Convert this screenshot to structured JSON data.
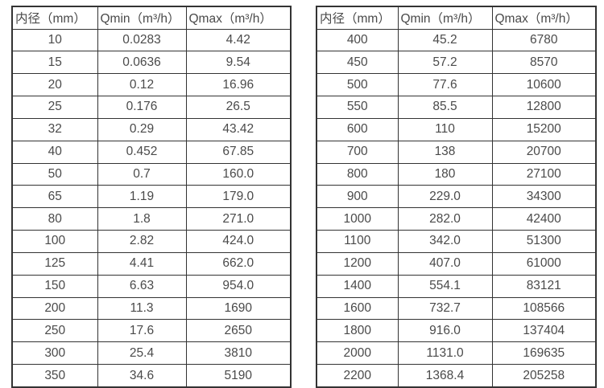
{
  "page": {
    "background": "#ffffff",
    "text_color": "#4a4a4a",
    "border_color": "#333333"
  },
  "tables": [
    {
      "name": "flow-range-table-small-diameters",
      "headers": [
        "内径（mm）",
        "Qmin（m³/h）",
        "Qmax（m³/h）"
      ],
      "rows": [
        [
          "10",
          "0.0283",
          "4.42"
        ],
        [
          "15",
          "0.0636",
          "9.54"
        ],
        [
          "20",
          "0.12",
          "16.96"
        ],
        [
          "25",
          "0.176",
          "26.5"
        ],
        [
          "32",
          "0.29",
          "43.42"
        ],
        [
          "40",
          "0.452",
          "67.85"
        ],
        [
          "50",
          "0.7",
          "160.0"
        ],
        [
          "65",
          "1.19",
          "179.0"
        ],
        [
          "80",
          "1.8",
          "271.0"
        ],
        [
          "100",
          "2.82",
          "424.0"
        ],
        [
          "125",
          "4.41",
          "662.0"
        ],
        [
          "150",
          "6.63",
          "954.0"
        ],
        [
          "200",
          "11.3",
          "1690"
        ],
        [
          "250",
          "17.6",
          "2650"
        ],
        [
          "300",
          "25.4",
          "3810"
        ],
        [
          "350",
          "34.6",
          "5190"
        ]
      ]
    },
    {
      "name": "flow-range-table-large-diameters",
      "headers": [
        "内径（mm）",
        "Qmin（m³/h）",
        "Qmax（m³/h）"
      ],
      "rows": [
        [
          "400",
          "45.2",
          "6780"
        ],
        [
          "450",
          "57.2",
          "8570"
        ],
        [
          "500",
          "77.6",
          "10600"
        ],
        [
          "550",
          "85.5",
          "12800"
        ],
        [
          "600",
          "110",
          "15200"
        ],
        [
          "700",
          "138",
          "20700"
        ],
        [
          "800",
          "180",
          "27100"
        ],
        [
          "900",
          "229.0",
          "34300"
        ],
        [
          "1000",
          "282.0",
          "42400"
        ],
        [
          "1100",
          "342.0",
          "51300"
        ],
        [
          "1200",
          "407.0",
          "61000"
        ],
        [
          "1400",
          "554.1",
          "83121"
        ],
        [
          "1600",
          "732.7",
          "108566"
        ],
        [
          "1800",
          "916.0",
          "137404"
        ],
        [
          "2000",
          "1131.0",
          "169635"
        ],
        [
          "2200",
          "1368.4",
          "205258"
        ]
      ]
    }
  ]
}
